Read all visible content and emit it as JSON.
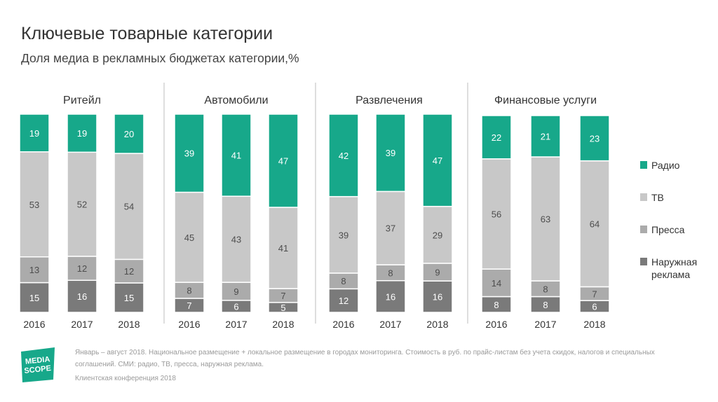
{
  "header": {
    "title": "Ключевые товарные категории",
    "subtitle": "Доля медиа в рекламных бюджетах категории,%"
  },
  "chart_data": {
    "type": "bar",
    "stacked": true,
    "percent_stacked": true,
    "series_order_bottom_to_top": [
      "Наружная реклама",
      "Пресса",
      "ТВ",
      "Радио"
    ],
    "colors": {
      "Радио": "#17a88a",
      "ТВ": "#c8c8c8",
      "Пресса": "#ababab",
      "Наружная реклама": "#7a7a7a"
    },
    "label_colors": {
      "Радио": "#ffffff",
      "ТВ": "#4d4d4d",
      "Пресса": "#4d4d4d",
      "Наружная реклама": "#ffffff"
    },
    "panels": [
      {
        "title": "Ритейл",
        "categories": [
          "2016",
          "2017",
          "2018"
        ],
        "series": [
          {
            "name": "Радио",
            "values": [
              19,
              19,
              20
            ]
          },
          {
            "name": "ТВ",
            "values": [
              53,
              52,
              54
            ]
          },
          {
            "name": "Пресса",
            "values": [
              13,
              12,
              12
            ]
          },
          {
            "name": "Наружная реклама",
            "values": [
              15,
              16,
              15
            ]
          }
        ]
      },
      {
        "title": "Автомобили",
        "categories": [
          "2016",
          "2017",
          "2018"
        ],
        "series": [
          {
            "name": "Радио",
            "values": [
              39,
              41,
              47
            ]
          },
          {
            "name": "ТВ",
            "values": [
              45,
              43,
              41
            ]
          },
          {
            "name": "Пресса",
            "values": [
              8,
              9,
              7
            ]
          },
          {
            "name": "Наружная реклама",
            "values": [
              7,
              6,
              5
            ]
          }
        ]
      },
      {
        "title": "Развлечения",
        "categories": [
          "2016",
          "2017",
          "2018"
        ],
        "series": [
          {
            "name": "Радио",
            "values": [
              42,
              39,
              47
            ]
          },
          {
            "name": "ТВ",
            "values": [
              39,
              37,
              29
            ]
          },
          {
            "name": "Пресса",
            "values": [
              8,
              8,
              9
            ]
          },
          {
            "name": "Наружная реклама",
            "values": [
              12,
              16,
              16
            ]
          }
        ]
      },
      {
        "title": "Финансовые услуги",
        "categories": [
          "2016",
          "2017",
          "2018"
        ],
        "series": [
          {
            "name": "Радио",
            "values": [
              22,
              21,
              23
            ]
          },
          {
            "name": "ТВ",
            "values": [
              56,
              63,
              64
            ]
          },
          {
            "name": "Пресса",
            "values": [
              14,
              8,
              7
            ]
          },
          {
            "name": "Наружная реклама",
            "values": [
              8,
              8,
              6
            ]
          }
        ]
      }
    ],
    "legend": {
      "position": "right",
      "items": [
        {
          "name": "Радио",
          "label": "Радио"
        },
        {
          "name": "ТВ",
          "label": "ТВ"
        },
        {
          "name": "Пресса",
          "label": "Пресса"
        },
        {
          "name": "Наружная реклама",
          "label": "Наружная реклама"
        }
      ]
    }
  },
  "footer": {
    "logo_text_line1": "MEDIA",
    "logo_text_line2": "SCOPE",
    "logo_color": "#17a88a",
    "note": "Январь – август 2018. Национальное размещение  + локальное размещение в городах мониторинга. Стоимость в руб. по прайс-листам без учета скидок, налогов и специальных соглашений. СМИ: радио, ТВ, пресса, наружная реклама.",
    "conference": "Клиентская конференция 2018"
  }
}
